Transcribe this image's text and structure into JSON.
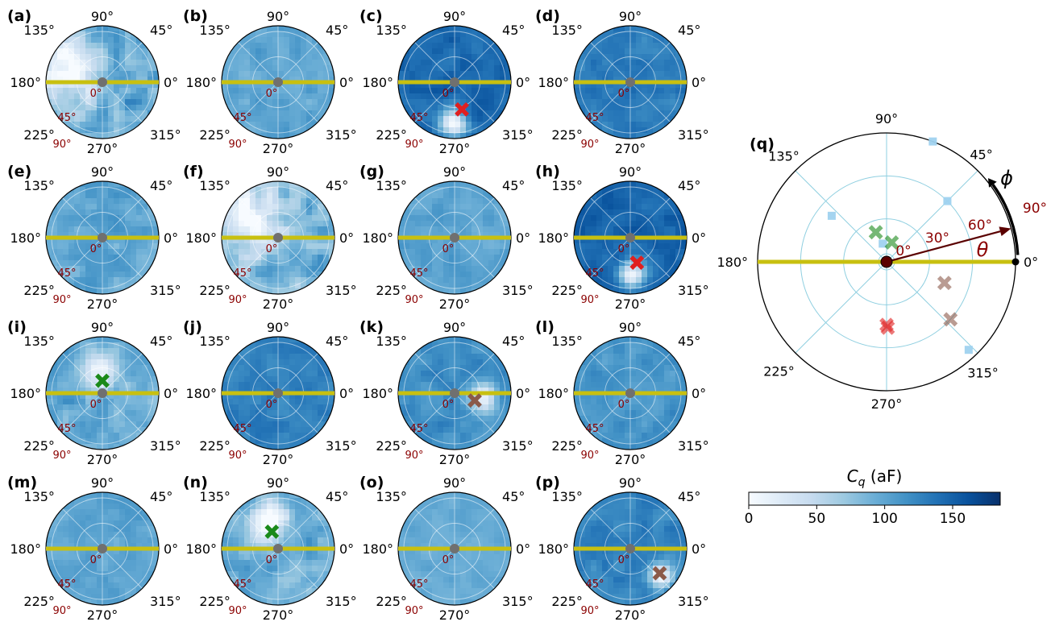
{
  "colors": {
    "axis_line": "#c8c010",
    "center_dot": "#707070",
    "grid": "#ffffff",
    "theta_text": "#8b0000",
    "q_grid": "#8fcfe0",
    "q_center": "#5a0000",
    "marker_red": "#e02020",
    "marker_green": "#1a8a1a",
    "marker_brown": "#8b5a4a",
    "marker_square": "#9fd2ef"
  },
  "colorbar": {
    "title_main": "C",
    "title_sub": "q",
    "title_unit": " (aF)",
    "ticks": [
      {
        "value": 0,
        "label": "0"
      },
      {
        "value": 50,
        "label": "50"
      },
      {
        "value": 100,
        "label": "100"
      },
      {
        "value": 150,
        "label": "150"
      }
    ],
    "vmin": 0,
    "vmax": 185,
    "stops": [
      "#f7fbff",
      "#deebf7",
      "#c6dbef",
      "#9ecae1",
      "#6baed6",
      "#4292c6",
      "#2171b5",
      "#08519c",
      "#08306b"
    ]
  },
  "chart_data": {
    "type": "polar",
    "phi_labels": [
      {
        "angle": 0,
        "label": "0°"
      },
      {
        "angle": 45,
        "label": "45°"
      },
      {
        "angle": 90,
        "label": "90°"
      },
      {
        "angle": 135,
        "label": "135°"
      },
      {
        "angle": 180,
        "label": "180°"
      },
      {
        "angle": 225,
        "label": "225°"
      },
      {
        "angle": 270,
        "label": "270°"
      },
      {
        "angle": 315,
        "label": "315°"
      }
    ],
    "theta_labels": [
      {
        "theta": 0,
        "label": "0°"
      },
      {
        "theta": 45,
        "label": "45°"
      },
      {
        "theta": 90,
        "label": "90°"
      }
    ],
    "panels": [
      {
        "label": "(a)",
        "base": 95,
        "variation": 30,
        "blobs": [
          {
            "phi": 160,
            "theta": 70,
            "size": 0.9,
            "depth": 1.0
          }
        ],
        "marker": null
      },
      {
        "label": "(b)",
        "base": 100,
        "variation": 14,
        "blobs": [],
        "marker": null
      },
      {
        "label": "(c)",
        "base": 145,
        "variation": 14,
        "blobs": [
          {
            "phi": 268,
            "theta": 72,
            "size": 0.35,
            "depth": 1.0
          }
        ],
        "marker": {
          "phi": 285,
          "theta": 50,
          "color": "red"
        }
      },
      {
        "label": "(d)",
        "base": 132,
        "variation": 14,
        "blobs": [],
        "marker": null
      },
      {
        "label": "(e)",
        "base": 98,
        "variation": 18,
        "blobs": [],
        "marker": null
      },
      {
        "label": "(f)",
        "base": 90,
        "variation": 30,
        "blobs": [
          {
            "phi": 150,
            "theta": 65,
            "size": 0.95,
            "depth": 1.0
          }
        ],
        "marker": null
      },
      {
        "label": "(g)",
        "base": 100,
        "variation": 14,
        "blobs": [],
        "marker": null
      },
      {
        "label": "(h)",
        "base": 148,
        "variation": 14,
        "blobs": [
          {
            "phi": 272,
            "theta": 65,
            "size": 0.35,
            "depth": 1.0
          }
        ],
        "marker": {
          "phi": 285,
          "theta": 46,
          "color": "red"
        }
      },
      {
        "label": "(i)",
        "base": 95,
        "variation": 22,
        "blobs": [
          {
            "phi": 90,
            "theta": 40,
            "size": 0.45,
            "depth": 1.0
          }
        ],
        "marker": {
          "phi": 90,
          "theta": 22,
          "color": "green"
        }
      },
      {
        "label": "(j)",
        "base": 128,
        "variation": 12,
        "blobs": [],
        "marker": null
      },
      {
        "label": "(k)",
        "base": 118,
        "variation": 14,
        "blobs": [
          {
            "phi": 350,
            "theta": 52,
            "size": 0.35,
            "depth": 1.0
          }
        ],
        "marker": {
          "phi": 340,
          "theta": 38,
          "color": "brown"
        }
      },
      {
        "label": "(l)",
        "base": 112,
        "variation": 14,
        "blobs": [],
        "marker": null
      },
      {
        "label": "(m)",
        "base": 100,
        "variation": 12,
        "blobs": [],
        "marker": null
      },
      {
        "label": "(n)",
        "base": 95,
        "variation": 22,
        "blobs": [
          {
            "phi": 110,
            "theta": 50,
            "size": 0.55,
            "depth": 1.0
          }
        ],
        "marker": {
          "phi": 110,
          "theta": 32,
          "color": "green"
        }
      },
      {
        "label": "(o)",
        "base": 95,
        "variation": 10,
        "blobs": [],
        "marker": null
      },
      {
        "label": "(p)",
        "base": 125,
        "variation": 14,
        "blobs": [
          {
            "phi": 318,
            "theta": 72,
            "size": 0.3,
            "depth": 1.0
          }
        ],
        "marker": {
          "phi": 320,
          "theta": 68,
          "color": "brown"
        }
      }
    ],
    "summary_panel": {
      "label": "(q)",
      "phi_labels": [
        {
          "angle": 0,
          "label": "0°"
        },
        {
          "angle": 45,
          "label": "45°"
        },
        {
          "angle": 90,
          "label": "90°"
        },
        {
          "angle": 135,
          "label": "135°"
        },
        {
          "angle": 180,
          "label": "180°"
        },
        {
          "angle": 225,
          "label": "225°"
        },
        {
          "angle": 270,
          "label": "270°"
        },
        {
          "angle": 315,
          "label": "315°"
        }
      ],
      "theta_labels": [
        {
          "theta": 0,
          "label": "0°"
        },
        {
          "theta": 30,
          "label": "30°"
        },
        {
          "theta": 60,
          "label": "60°"
        },
        {
          "theta": 90,
          "label": "90°"
        }
      ],
      "theta_max": 90,
      "axis_labels": {
        "phi": "ϕ",
        "theta": "θ"
      },
      "arrow": {
        "phi": 15,
        "theta": 90
      },
      "crosses": [
        {
          "phi": 270,
          "theta": 44,
          "color": "red"
        },
        {
          "phi": 271,
          "theta": 46,
          "color": "red"
        },
        {
          "phi": 110,
          "theta": 22,
          "color": "green"
        },
        {
          "phi": 75,
          "theta": 14,
          "color": "green"
        },
        {
          "phi": 340,
          "theta": 43,
          "color": "brown"
        },
        {
          "phi": 318,
          "theta": 60,
          "color": "brown"
        }
      ],
      "squares": [
        {
          "phi": 69,
          "theta": 90,
          "color": "square"
        },
        {
          "phi": 45,
          "theta": 60,
          "color": "square"
        },
        {
          "phi": 140,
          "theta": 50,
          "color": "square"
        },
        {
          "phi": 102,
          "theta": 13,
          "color": "square"
        },
        {
          "phi": 313,
          "theta": 84,
          "color": "square"
        }
      ]
    }
  }
}
